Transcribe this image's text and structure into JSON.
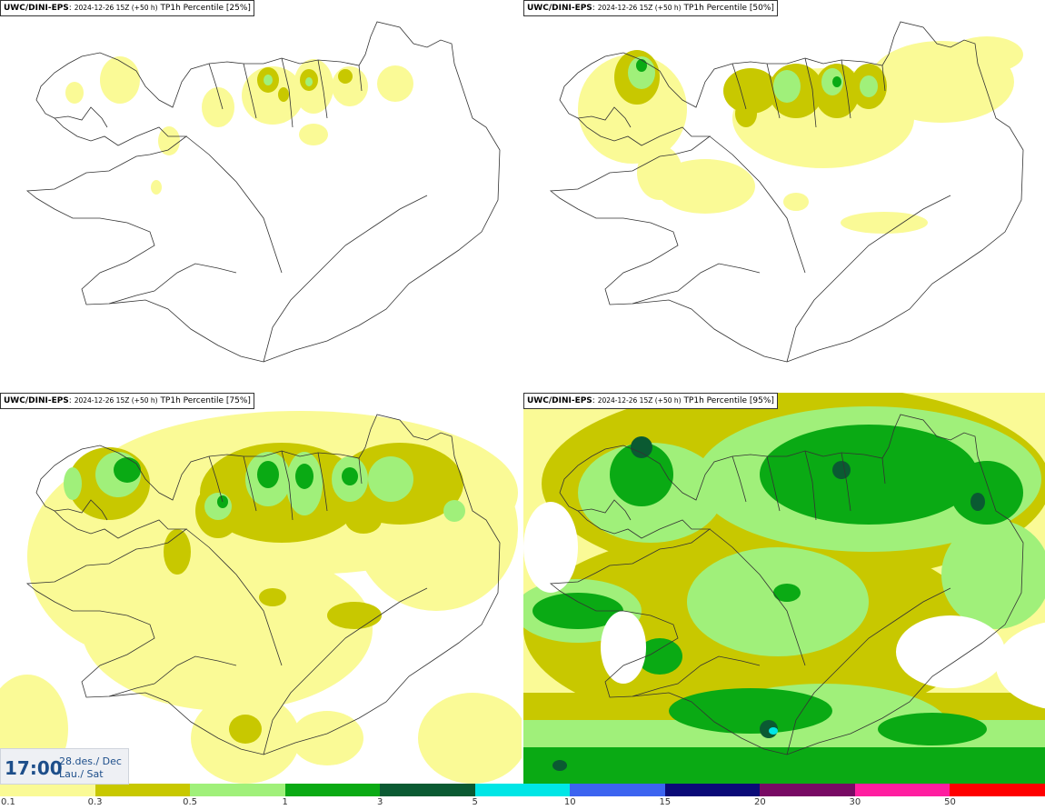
{
  "colors": {
    "c01": "#fafa96",
    "c03": "#c8c800",
    "c05": "#a0f07a",
    "c1": "#0aaa14",
    "c3": "#0a5a32",
    "c5": "#00e6e6",
    "c10": "#3c64f0",
    "c15": "#0a0a78",
    "c20": "#780a64",
    "c30": "#ff1ea0",
    "c50": "#ff0000",
    "coast": "#333333"
  },
  "panels": [
    {
      "model": "UWC/DINI-EPS",
      "run": "2024-12-26 15Z (+50 h)",
      "field": "TP1h Percentile [25%]"
    },
    {
      "model": "UWC/DINI-EPS",
      "run": "2024-12-26 15Z (+50 h)",
      "field": "TP1h Percentile [50%]"
    },
    {
      "model": "UWC/DINI-EPS",
      "run": "2024-12-26 15Z (+50 h)",
      "field": "TP1h Percentile [75%]"
    },
    {
      "model": "UWC/DINI-EPS",
      "run": "2024-12-26 15Z (+50 h)",
      "field": "TP1h Percentile [95%]"
    }
  ],
  "time": {
    "clock": "17:00",
    "date": "28.des./ Dec",
    "day": "Lau./ Sat"
  },
  "legend": {
    "ticks": [
      "0.1",
      "0.3",
      "0.5",
      "1",
      "3",
      "5",
      "10",
      "15",
      "20",
      "30",
      "50"
    ],
    "colors": [
      "#fafa96",
      "#c8c800",
      "#a0f07a",
      "#0aaa14",
      "#0a5a32",
      "#00e6e6",
      "#3c64f0",
      "#0a0a78",
      "#780a64",
      "#ff1ea0",
      "#ff0000"
    ]
  }
}
